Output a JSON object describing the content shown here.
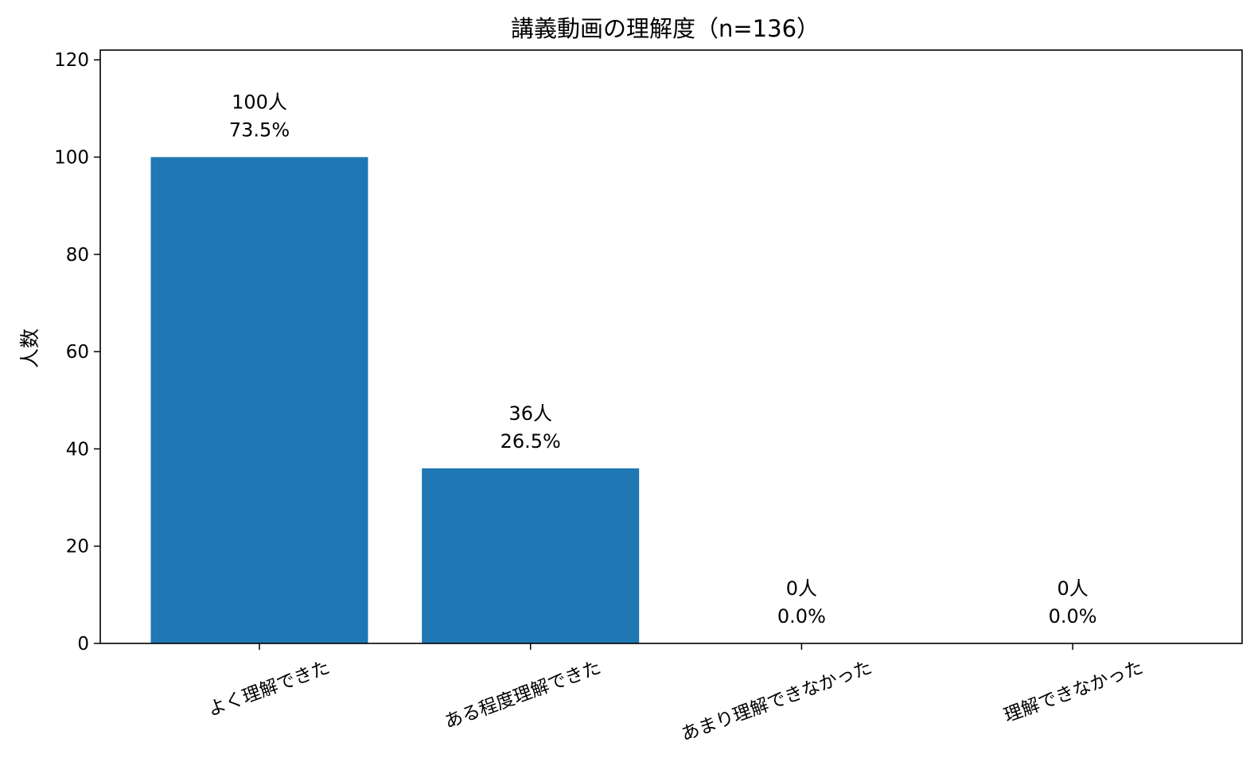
{
  "chart_data": {
    "type": "bar",
    "title": "講義動画の理解度（n=136）",
    "xlabel": "",
    "ylabel": "人数",
    "categories": [
      "よく理解できた",
      "ある程度理解できた",
      "あまり理解できなかった",
      "理解できなかった"
    ],
    "values": [
      100,
      36,
      0,
      0
    ],
    "count_labels": [
      "100人",
      "36人",
      "0人",
      "0人"
    ],
    "percent_labels": [
      "73.5%",
      "26.5%",
      "0.0%",
      "0.0%"
    ],
    "ylim": [
      0,
      122
    ],
    "yticks": [
      0,
      20,
      40,
      60,
      80,
      100,
      120
    ],
    "bar_color": "#1f77b4",
    "grid": false,
    "legend": "none"
  }
}
